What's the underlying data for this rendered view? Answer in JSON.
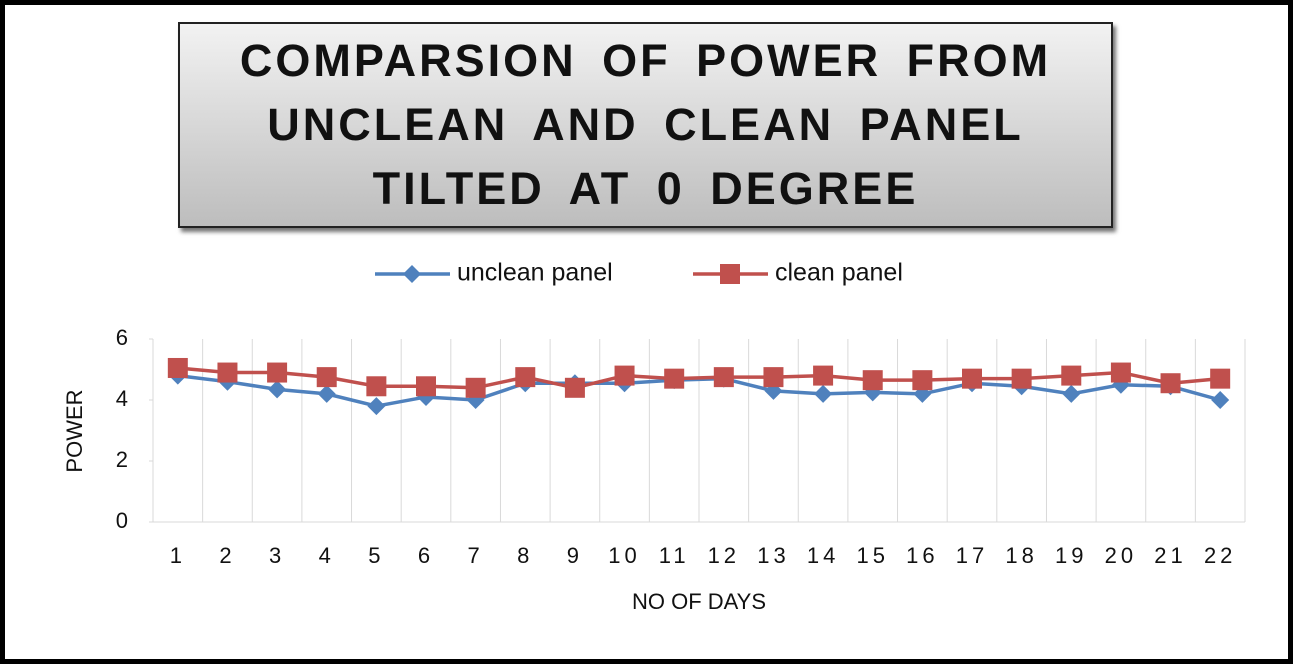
{
  "chart_data": {
    "type": "line",
    "title": "COMPARSION OF POWER FROM UNCLEAN AND CLEAN PANEL TILTED AT 0 DEGREE",
    "x_label": "NO OF DAYS",
    "y_label": "POWER",
    "categories": [
      "1",
      "2",
      "3",
      "4",
      "5",
      "6",
      "7",
      "8",
      "9",
      "10",
      "11",
      "12",
      "13",
      "14",
      "15",
      "16",
      "17",
      "18",
      "19",
      "20",
      "21",
      "22"
    ],
    "series": [
      {
        "name": "unclean panel",
        "color": "#4f81bd",
        "marker": "diamond",
        "values": [
          4.8,
          4.6,
          4.35,
          4.2,
          3.8,
          4.1,
          4.0,
          4.55,
          4.55,
          4.55,
          4.65,
          4.7,
          4.3,
          4.2,
          4.25,
          4.2,
          4.55,
          4.45,
          4.2,
          4.5,
          4.45,
          4.0
        ]
      },
      {
        "name": "clean panel",
        "color": "#c0504d",
        "marker": "square",
        "values": [
          5.05,
          4.9,
          4.9,
          4.75,
          4.45,
          4.45,
          4.4,
          4.75,
          4.4,
          4.8,
          4.7,
          4.75,
          4.75,
          4.8,
          4.65,
          4.65,
          4.7,
          4.7,
          4.8,
          4.9,
          4.55,
          4.7
        ]
      }
    ],
    "ylim": [
      0,
      6
    ],
    "yticks": [
      0,
      2,
      4,
      6
    ],
    "legend": "top"
  }
}
